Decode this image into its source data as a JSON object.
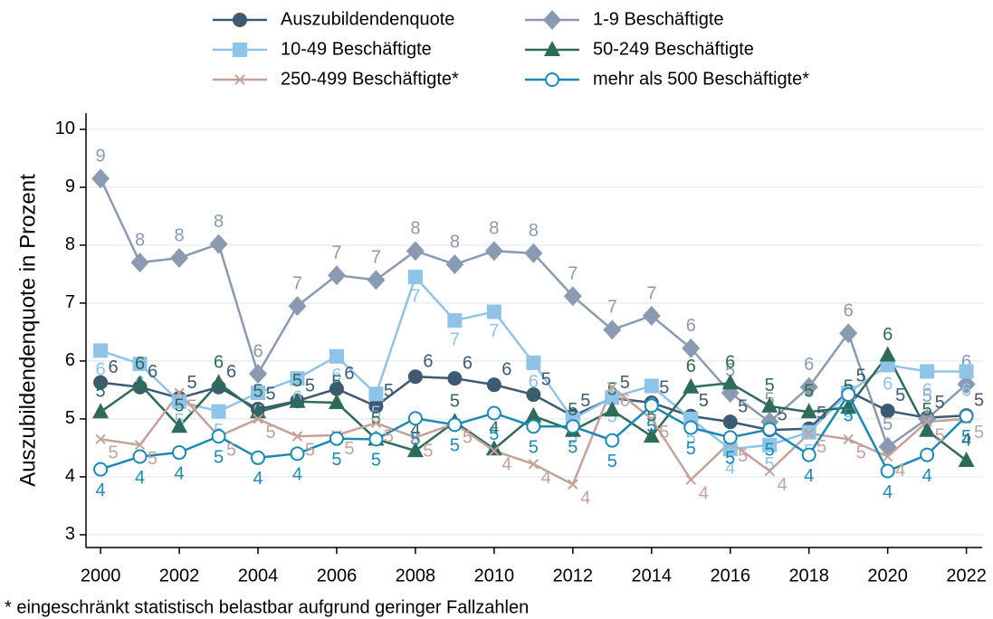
{
  "chart_data": {
    "type": "line",
    "y_label": "Auszubildendenquote in Prozent",
    "footnote": "* eingeschränkt statistisch belastbar aufgrund geringer Fallzahlen",
    "x": [
      2000,
      2001,
      2002,
      2003,
      2004,
      2005,
      2006,
      2007,
      2008,
      2009,
      2010,
      2011,
      2012,
      2013,
      2014,
      2015,
      2016,
      2017,
      2018,
      2019,
      2020,
      2021,
      2022
    ],
    "xlim": [
      1999.63,
      2022.4
    ],
    "xticks": [
      2000,
      2002,
      2004,
      2006,
      2008,
      2010,
      2012,
      2014,
      2016,
      2018,
      2020,
      2022
    ],
    "ylim": [
      2.78,
      10.28
    ],
    "yticks": [
      3,
      4,
      5,
      6,
      7,
      8,
      9,
      10
    ],
    "grid": true,
    "series": [
      {
        "name": "Auszubildendenquote",
        "color": "#3e5a73",
        "marker": "circle",
        "values": [
          5.63,
          5.55,
          5.36,
          5.55,
          5.17,
          5.31,
          5.52,
          5.22,
          5.73,
          5.7,
          5.59,
          5.42,
          5.05,
          5.36,
          5.28,
          5.05,
          4.95,
          4.81,
          4.83,
          5.48,
          5.14,
          5.02,
          5.06
        ],
        "value_labels": [
          "6",
          "6",
          "5",
          "6",
          "5",
          "5",
          "6",
          "5",
          "6",
          "6",
          "6",
          "5",
          "5",
          "5",
          "5",
          "5",
          "5",
          "5",
          "5",
          "5",
          "5",
          "5",
          "5"
        ]
      },
      {
        "name": "1-9 Beschäftigte",
        "color": "#8a9ab0",
        "marker": "diamond",
        "values": [
          9.15,
          7.7,
          7.78,
          8.02,
          5.78,
          6.95,
          7.48,
          7.4,
          7.9,
          7.67,
          7.9,
          7.86,
          7.12,
          6.54,
          6.78,
          6.22,
          5.45,
          4.95,
          5.55,
          6.48,
          4.52,
          5.0,
          5.6
        ],
        "value_labels": [
          "9",
          "8",
          "8",
          "8",
          "6",
          "7",
          "7",
          "7",
          "8",
          "8",
          "8",
          "8",
          "7",
          "7",
          "7",
          "6",
          "5",
          "5",
          "6",
          "6",
          "5",
          "5",
          "6"
        ]
      },
      {
        "name": "10-49 Beschäftigte",
        "color": "#8fc3e8",
        "marker": "square",
        "values": [
          6.18,
          5.95,
          5.3,
          5.13,
          5.45,
          5.7,
          6.08,
          5.43,
          7.45,
          6.7,
          6.85,
          5.97,
          5.0,
          5.37,
          5.57,
          5.0,
          4.48,
          4.55,
          4.77,
          5.45,
          5.93,
          5.82,
          5.82
        ],
        "value_labels": [
          "6",
          "6",
          "5",
          "5",
          "5",
          "6",
          "6",
          "5",
          "7",
          "7",
          "7",
          "6",
          "5",
          "5",
          "6",
          "5",
          "4",
          "5",
          "5",
          "5",
          "6",
          "6",
          "6"
        ]
      },
      {
        "name": "50-249 Beschäftigte",
        "color": "#2e6b5a",
        "marker": "triangle",
        "values": [
          5.12,
          5.6,
          4.87,
          5.62,
          5.12,
          5.3,
          5.28,
          4.65,
          4.45,
          4.95,
          4.48,
          5.05,
          4.8,
          5.15,
          4.7,
          5.55,
          5.62,
          5.22,
          5.12,
          5.2,
          6.1,
          4.8,
          4.28
        ],
        "value_labels": [
          "5",
          "6",
          "5",
          "6",
          "5",
          "5",
          "5",
          "5",
          "4",
          "5",
          "4",
          "5",
          "5",
          "5",
          "5",
          "6",
          "6",
          "5",
          "5",
          "5",
          "6",
          "5",
          "4"
        ]
      },
      {
        "name": "250-499 Beschäftigte*",
        "color": "#c4a29a",
        "marker": "x",
        "values": [
          4.65,
          4.55,
          5.45,
          4.7,
          5.0,
          4.7,
          4.72,
          4.93,
          4.68,
          4.92,
          4.45,
          4.22,
          3.87,
          5.55,
          5.0,
          3.95,
          4.6,
          4.1,
          4.75,
          4.65,
          4.35,
          4.95,
          5.0
        ],
        "value_labels": [
          "5",
          "5",
          "5",
          "5",
          "5",
          "5",
          "5",
          "5",
          "5",
          "5",
          "4",
          "4",
          "4",
          "6",
          "5",
          "4",
          "5",
          "4",
          "5",
          "5",
          "4",
          "5",
          "5"
        ]
      },
      {
        "name": "mehr als 500 Beschäftigte*",
        "color": "#1a8ab5",
        "marker": "open-circle",
        "values": [
          4.13,
          4.35,
          4.42,
          4.7,
          4.33,
          4.4,
          4.66,
          4.65,
          5.01,
          4.9,
          5.1,
          4.87,
          4.87,
          4.63,
          5.23,
          4.85,
          4.68,
          4.82,
          4.38,
          5.42,
          4.1,
          4.38,
          5.05
        ],
        "value_labels": [
          "4",
          "4",
          "4",
          "5",
          "4",
          "4",
          "5",
          "5",
          "5",
          "5",
          "5",
          "5",
          "5",
          "5",
          "5",
          "5",
          "5",
          "5",
          "4",
          "5",
          "4",
          "4",
          "5"
        ]
      }
    ]
  }
}
